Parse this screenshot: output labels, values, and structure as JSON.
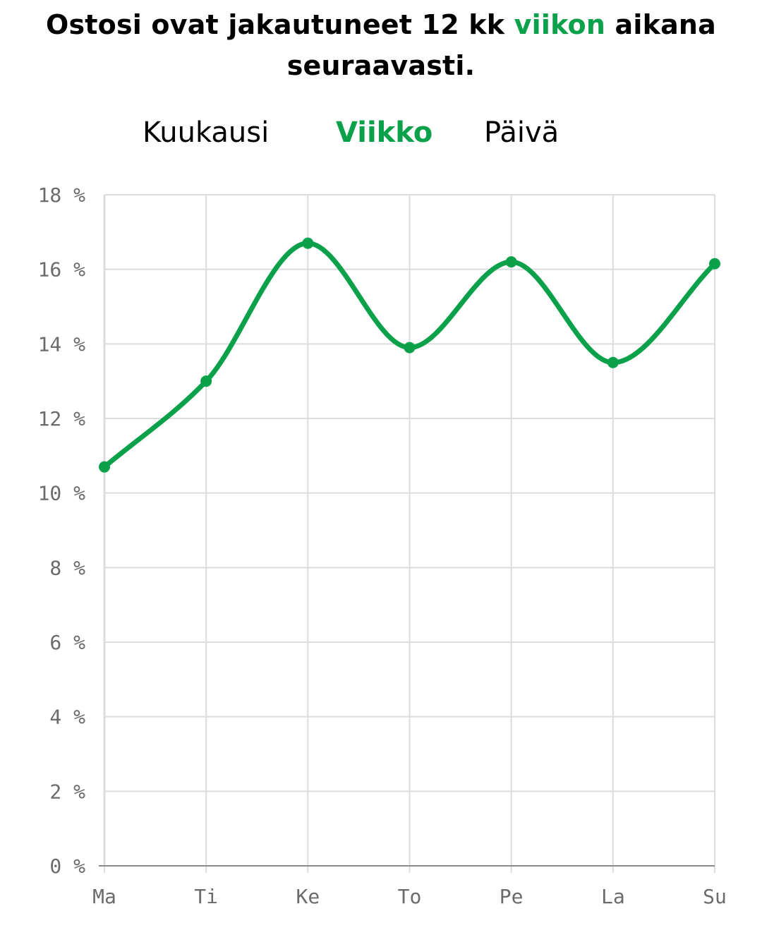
{
  "headline": {
    "part1": "Ostosi ovat jakautuneet 12 kk ",
    "accent": "viikon",
    "part2": " aikana seuraavasti."
  },
  "tabs": [
    {
      "label": "Kuukausi",
      "active": false
    },
    {
      "label": "Viikko",
      "active": true
    },
    {
      "label": "Päivä",
      "active": false
    }
  ],
  "colors": {
    "accent": "#0aa14a",
    "grid": "#dcdcdc",
    "axis": "#8a8a8a",
    "tick_text": "#6b6b6b"
  },
  "chart_data": {
    "type": "line",
    "categories": [
      "Ma",
      "Ti",
      "Ke",
      "To",
      "Pe",
      "La",
      "Su"
    ],
    "series": [
      {
        "values": [
          10.7,
          13.0,
          16.7,
          13.9,
          16.2,
          13.5,
          16.15
        ]
      }
    ],
    "y_ticks": [
      "0 %",
      "2 %",
      "4 %",
      "6 %",
      "8 %",
      "10 %",
      "12 %",
      "14 %",
      "16 %",
      "18 %"
    ],
    "ylim": [
      0,
      18
    ],
    "grid": true,
    "smooth": true,
    "markers": true,
    "title": "",
    "xlabel": "",
    "ylabel": ""
  }
}
